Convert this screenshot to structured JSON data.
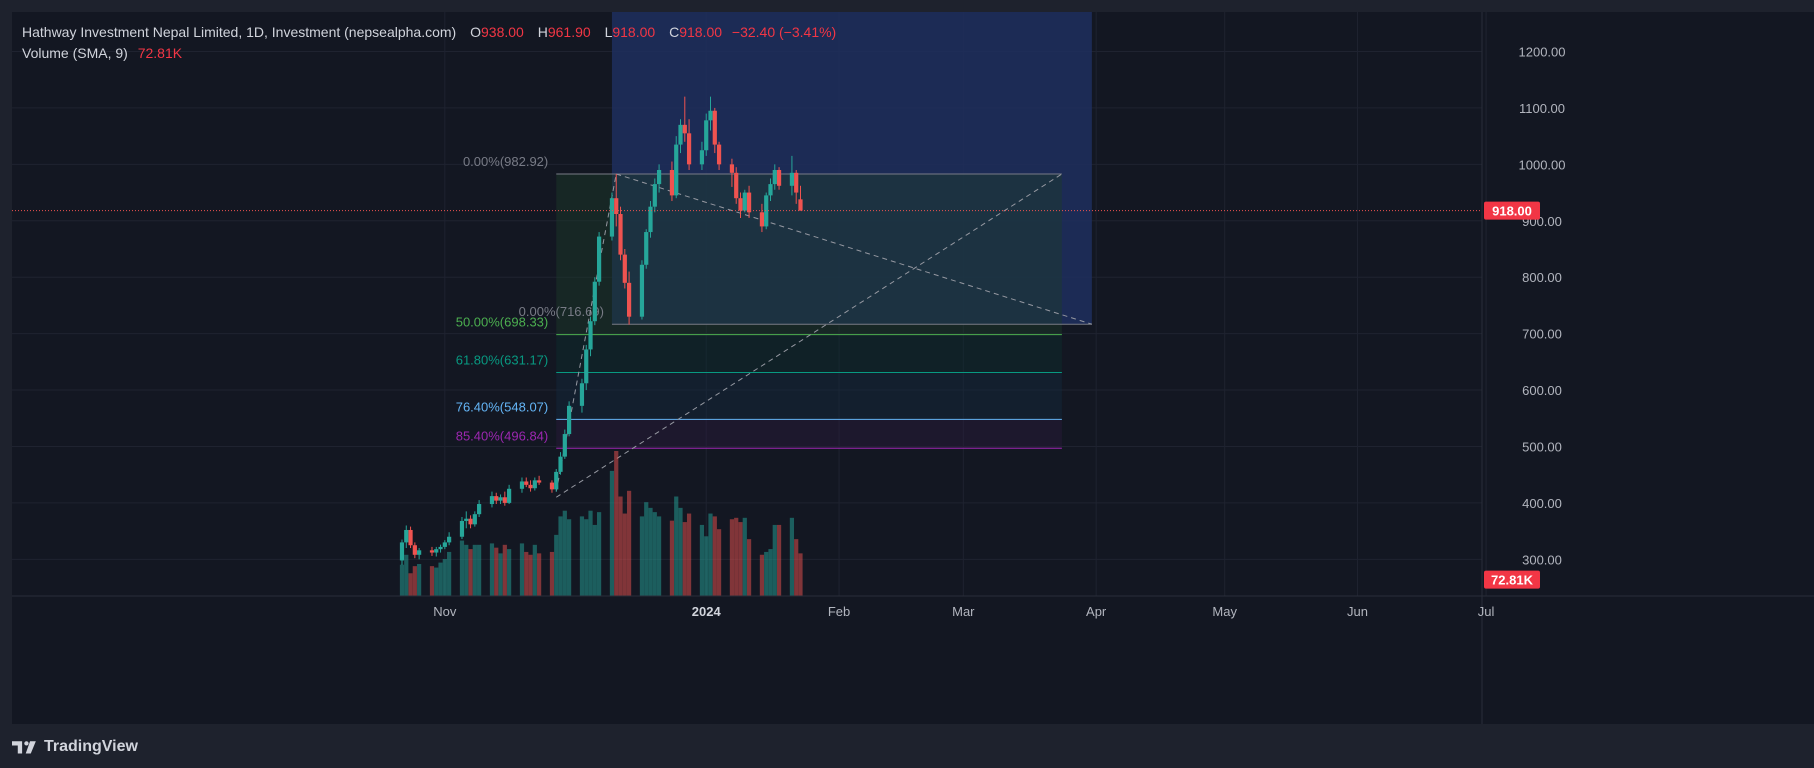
{
  "header": {
    "symbol": "Hathway Investment Nepal Limited, 1D, Investment (nepsealpha.com)",
    "open_label": "O",
    "open": "938.00",
    "high_label": "H",
    "high": "961.90",
    "low_label": "L",
    "low": "918.00",
    "close_label": "C",
    "close": "918.00",
    "change": "−32.40 (−3.41%)",
    "volume_label": "Volume (SMA, 9)",
    "volume_value": "72.81K"
  },
  "brand": {
    "name": "TradingView",
    "logo": "tradingview-logo-icon"
  },
  "colors": {
    "up": "#26a69a",
    "down": "#ef5350",
    "background": "#131722",
    "range_box": "#1e2f5e",
    "grid": "#1f2330",
    "axis_text": "#b2b5be"
  },
  "chart_data": {
    "type": "candlestick",
    "ylim": [
      235,
      1270
    ],
    "y_ticks": [
      "1200.00",
      "1100.00",
      "1000.00",
      "900.00",
      "800.00",
      "700.00",
      "600.00",
      "500.00",
      "400.00",
      "300.00"
    ],
    "x_ticks": [
      "Nov",
      "2024",
      "Feb",
      "Mar",
      "Apr",
      "May",
      "Jun",
      "Jul"
    ],
    "last_price_tag": "918.00",
    "volume_tag": "72.81K",
    "candles": [
      {
        "d": "2023-10-22",
        "o": 298,
        "h": 335,
        "l": 290,
        "c": 330
      },
      {
        "d": "2023-10-23",
        "o": 330,
        "h": 360,
        "l": 320,
        "c": 352
      },
      {
        "d": "2023-10-24",
        "o": 352,
        "h": 358,
        "l": 320,
        "c": 325
      },
      {
        "d": "2023-10-25",
        "o": 325,
        "h": 330,
        "l": 302,
        "c": 308
      },
      {
        "d": "2023-10-26",
        "o": 308,
        "h": 320,
        "l": 300,
        "c": 316
      },
      {
        "d": "2023-10-29",
        "o": 316,
        "h": 322,
        "l": 306,
        "c": 312
      },
      {
        "d": "2023-10-30",
        "o": 312,
        "h": 322,
        "l": 305,
        "c": 318
      },
      {
        "d": "2023-10-31",
        "o": 318,
        "h": 326,
        "l": 312,
        "c": 322
      },
      {
        "d": "2023-11-01",
        "o": 322,
        "h": 334,
        "l": 318,
        "c": 330
      },
      {
        "d": "2023-11-02",
        "o": 330,
        "h": 348,
        "l": 325,
        "c": 340
      },
      {
        "d": "2023-11-05",
        "o": 340,
        "h": 375,
        "l": 336,
        "c": 368
      },
      {
        "d": "2023-11-06",
        "o": 368,
        "h": 385,
        "l": 355,
        "c": 372
      },
      {
        "d": "2023-11-07",
        "o": 372,
        "h": 378,
        "l": 355,
        "c": 362
      },
      {
        "d": "2023-11-08",
        "o": 362,
        "h": 385,
        "l": 358,
        "c": 380
      },
      {
        "d": "2023-11-09",
        "o": 380,
        "h": 405,
        "l": 375,
        "c": 398
      },
      {
        "d": "2023-11-12",
        "o": 398,
        "h": 420,
        "l": 392,
        "c": 412
      },
      {
        "d": "2023-11-13",
        "o": 412,
        "h": 418,
        "l": 398,
        "c": 404
      },
      {
        "d": "2023-11-14",
        "o": 404,
        "h": 415,
        "l": 398,
        "c": 410
      },
      {
        "d": "2023-11-15",
        "o": 410,
        "h": 420,
        "l": 395,
        "c": 400
      },
      {
        "d": "2023-11-16",
        "o": 400,
        "h": 432,
        "l": 398,
        "c": 425
      },
      {
        "d": "2023-11-19",
        "o": 425,
        "h": 445,
        "l": 418,
        "c": 438
      },
      {
        "d": "2023-11-20",
        "o": 438,
        "h": 445,
        "l": 428,
        "c": 432
      },
      {
        "d": "2023-11-21",
        "o": 432,
        "h": 440,
        "l": 420,
        "c": 426
      },
      {
        "d": "2023-11-22",
        "o": 426,
        "h": 445,
        "l": 422,
        "c": 440
      },
      {
        "d": "2023-11-23",
        "o": 440,
        "h": 448,
        "l": 432,
        "c": 436
      },
      {
        "d": "2023-11-26",
        "o": 436,
        "h": 440,
        "l": 418,
        "c": 424
      },
      {
        "d": "2023-11-27",
        "o": 424,
        "h": 460,
        "l": 420,
        "c": 455
      },
      {
        "d": "2023-11-28",
        "o": 455,
        "h": 490,
        "l": 450,
        "c": 482
      },
      {
        "d": "2023-11-29",
        "o": 482,
        "h": 530,
        "l": 478,
        "c": 522
      },
      {
        "d": "2023-11-30",
        "o": 522,
        "h": 580,
        "l": 518,
        "c": 572
      },
      {
        "d": "2023-12-03",
        "o": 572,
        "h": 620,
        "l": 560,
        "c": 612
      },
      {
        "d": "2023-12-04",
        "o": 612,
        "h": 680,
        "l": 600,
        "c": 672
      },
      {
        "d": "2023-12-05",
        "o": 672,
        "h": 730,
        "l": 660,
        "c": 722
      },
      {
        "d": "2023-12-06",
        "o": 722,
        "h": 800,
        "l": 715,
        "c": 792
      },
      {
        "d": "2023-12-07",
        "o": 792,
        "h": 880,
        "l": 785,
        "c": 872
      },
      {
        "d": "2023-12-10",
        "o": 872,
        "h": 950,
        "l": 865,
        "c": 940
      },
      {
        "d": "2023-12-11",
        "o": 940,
        "h": 983,
        "l": 890,
        "c": 912
      },
      {
        "d": "2023-12-12",
        "o": 912,
        "h": 925,
        "l": 830,
        "c": 840
      },
      {
        "d": "2023-12-13",
        "o": 840,
        "h": 850,
        "l": 780,
        "c": 790
      },
      {
        "d": "2023-12-14",
        "o": 790,
        "h": 810,
        "l": 716,
        "c": 730
      },
      {
        "d": "2023-12-17",
        "o": 730,
        "h": 830,
        "l": 725,
        "c": 822
      },
      {
        "d": "2023-12-18",
        "o": 822,
        "h": 885,
        "l": 815,
        "c": 880
      },
      {
        "d": "2023-12-19",
        "o": 880,
        "h": 935,
        "l": 870,
        "c": 925
      },
      {
        "d": "2023-12-20",
        "o": 925,
        "h": 975,
        "l": 915,
        "c": 965
      },
      {
        "d": "2023-12-21",
        "o": 965,
        "h": 1000,
        "l": 950,
        "c": 990
      },
      {
        "d": "2023-12-24",
        "o": 990,
        "h": 1005,
        "l": 935,
        "c": 945
      },
      {
        "d": "2023-12-25",
        "o": 945,
        "h": 1050,
        "l": 940,
        "c": 1035
      },
      {
        "d": "2023-12-26",
        "o": 1035,
        "h": 1080,
        "l": 1020,
        "c": 1070
      },
      {
        "d": "2023-12-27",
        "o": 1070,
        "h": 1120,
        "l": 1040,
        "c": 1055
      },
      {
        "d": "2023-12-28",
        "o": 1055,
        "h": 1080,
        "l": 990,
        "c": 1000
      },
      {
        "d": "2023-12-31",
        "o": 1000,
        "h": 1040,
        "l": 990,
        "c": 1025
      },
      {
        "d": "2024-01-01",
        "o": 1025,
        "h": 1090,
        "l": 1015,
        "c": 1078
      },
      {
        "d": "2024-01-02",
        "o": 1078,
        "h": 1120,
        "l": 1060,
        "c": 1095
      },
      {
        "d": "2024-01-03",
        "o": 1095,
        "h": 1100,
        "l": 1020,
        "c": 1035
      },
      {
        "d": "2024-01-04",
        "o": 1035,
        "h": 1040,
        "l": 990,
        "c": 1000
      },
      {
        "d": "2024-01-07",
        "o": 1000,
        "h": 1010,
        "l": 960,
        "c": 985
      },
      {
        "d": "2024-01-08",
        "o": 985,
        "h": 995,
        "l": 930,
        "c": 940
      },
      {
        "d": "2024-01-09",
        "o": 940,
        "h": 950,
        "l": 905,
        "c": 918
      },
      {
        "d": "2024-01-10",
        "o": 918,
        "h": 955,
        "l": 915,
        "c": 950
      },
      {
        "d": "2024-01-11",
        "o": 950,
        "h": 962,
        "l": 905,
        "c": 915
      },
      {
        "d": "2024-01-14",
        "o": 915,
        "h": 930,
        "l": 880,
        "c": 890
      },
      {
        "d": "2024-01-15",
        "o": 890,
        "h": 950,
        "l": 885,
        "c": 945
      },
      {
        "d": "2024-01-16",
        "o": 945,
        "h": 975,
        "l": 935,
        "c": 965
      },
      {
        "d": "2024-01-17",
        "o": 965,
        "h": 1000,
        "l": 955,
        "c": 990
      },
      {
        "d": "2024-01-18",
        "o": 990,
        "h": 995,
        "l": 955,
        "c": 962
      },
      {
        "d": "2024-01-21",
        "o": 962,
        "h": 1015,
        "l": 945,
        "c": 985
      },
      {
        "d": "2024-01-22",
        "o": 985,
        "h": 990,
        "l": 930,
        "c": 950
      },
      {
        "d": "2024-01-23",
        "o": 938,
        "h": 962,
        "l": 918,
        "c": 918
      }
    ],
    "volumes": [
      44,
      58,
      32,
      42,
      45,
      42,
      40,
      47,
      52,
      62,
      78,
      72,
      66,
      72,
      72,
      74,
      68,
      60,
      72,
      66,
      74,
      62,
      58,
      72,
      60,
      62,
      86,
      112,
      120,
      108,
      112,
      108,
      120,
      100,
      118,
      176,
      204,
      140,
      116,
      148,
      112,
      132,
      124,
      118,
      112,
      106,
      140,
      124,
      104,
      116,
      100,
      84,
      116,
      112,
      94,
      108,
      110,
      104,
      110,
      80,
      58,
      62,
      66,
      100,
      100,
      110,
      80,
      60
    ],
    "fib_levels": [
      {
        "label": "0.00%(982.92)",
        "price": 982.92,
        "color": "#787b86"
      },
      {
        "label": "0.00%(716.69)",
        "price": 716.69,
        "color": "#787b86"
      },
      {
        "label": "50.00%(698.33)",
        "price": 698.33,
        "color": "#4caf50"
      },
      {
        "label": "61.80%(631.17)",
        "price": 631.17,
        "color": "#089981"
      },
      {
        "label": "76.40%(548.07)",
        "price": 548.07,
        "color": "#64b5f6"
      },
      {
        "label": "85.40%(496.84)",
        "price": 496.84,
        "color": "#9c27b0"
      }
    ],
    "price_range_box": {
      "top": 1270,
      "bottom": 716.69,
      "start": "2023-12-10",
      "end": "2024-03-31"
    },
    "fib_extension": {
      "start": "2023-11-27",
      "end": "2024-03-24"
    }
  }
}
